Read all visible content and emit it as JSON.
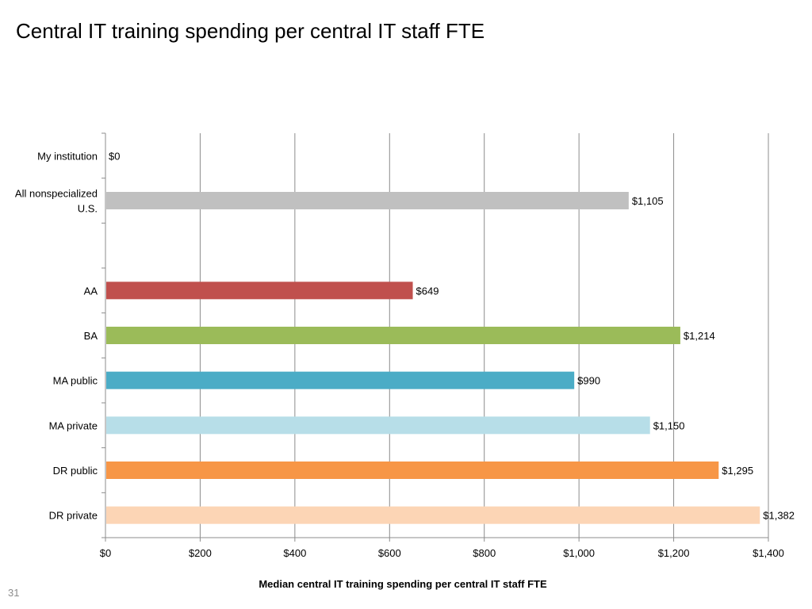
{
  "slide": {
    "title": "Central IT training spending per central IT staff FTE",
    "page_number": "31"
  },
  "chart_data": {
    "type": "bar",
    "orientation": "horizontal",
    "title": "",
    "xlabel": "Median central IT training spending per central IT staff FTE",
    "ylabel": "",
    "xlim": [
      0,
      1400
    ],
    "xticks": [
      0,
      200,
      400,
      600,
      800,
      1000,
      1200,
      1400
    ],
    "xtick_labels": [
      "$0",
      "$200",
      "$400",
      "$600",
      "$800",
      "$1,000",
      "$1,200",
      "$1,400"
    ],
    "grid": "vertical",
    "legend": "none",
    "categories": [
      [
        "My institution"
      ],
      [
        "All nonspecialized",
        "U.S."
      ],
      [
        ""
      ],
      [
        "AA"
      ],
      [
        "BA"
      ],
      [
        "MA public"
      ],
      [
        "MA private"
      ],
      [
        "DR public"
      ],
      [
        "DR private"
      ]
    ],
    "values": [
      0,
      1105,
      null,
      649,
      1214,
      990,
      1150,
      1295,
      1382
    ],
    "data_labels": [
      "$0",
      "$1,105",
      "",
      "$649",
      "$1,214",
      "$990",
      "$1,150",
      "$1,295",
      "$1,382"
    ],
    "colors": [
      "#c0c0c0",
      "#c0c0c0",
      "#ffffff",
      "#c0504d",
      "#9bbb59",
      "#4bacc6",
      "#b7dee8",
      "#f79646",
      "#fcd5b5"
    ]
  }
}
